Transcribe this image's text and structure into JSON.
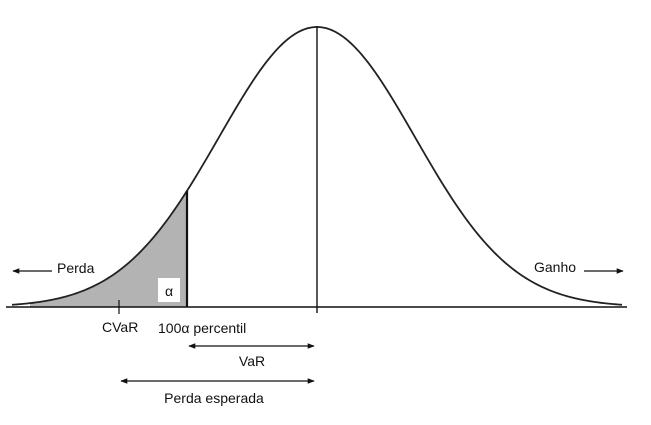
{
  "labels": {
    "loss": "Perda",
    "gain": "Ganho",
    "alpha": "α",
    "cvar": "CVaR",
    "percentile": "100α percentil",
    "var": "VaR",
    "expected_loss": "Perda esperada"
  },
  "colors": {
    "curve": "#222222",
    "tail_fill": "#b3b3b3",
    "axis": "#111111"
  }
}
